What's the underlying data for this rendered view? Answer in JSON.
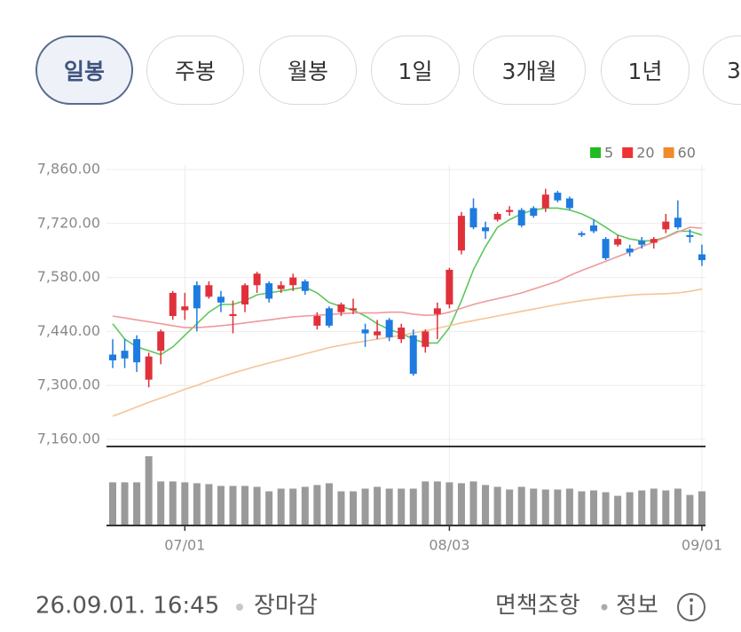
{
  "tabs": [
    "일봉",
    "주봉",
    "월봉",
    "1일",
    "3개월",
    "1년",
    "3"
  ],
  "selected_tab": 0,
  "chart_data": {
    "type": "candlestick",
    "categories": [
      null,
      null,
      null,
      null,
      null,
      null,
      "07/01",
      null,
      null,
      null,
      null,
      null,
      null,
      null,
      null,
      null,
      null,
      null,
      null,
      null,
      null,
      null,
      null,
      null,
      null,
      null,
      null,
      null,
      "08/03",
      null,
      null,
      null,
      null,
      null,
      null,
      null,
      null,
      null,
      null,
      null,
      null,
      null,
      null,
      null,
      null,
      null,
      null,
      null,
      null,
      "09/01"
    ],
    "open": [
      7380,
      7390,
      7420,
      7315,
      7390,
      7480,
      7495,
      7560,
      7530,
      7530,
      7480,
      7510,
      7560,
      7565,
      7550,
      7560,
      7570,
      7455,
      7500,
      7490,
      7495,
      7445,
      7430,
      7470,
      7420,
      7430,
      7400,
      7485,
      7510,
      7650,
      7760,
      7710,
      7730,
      7750,
      7755,
      7760,
      7760,
      7800,
      7785,
      7695,
      7715,
      7680,
      7665,
      7655,
      7675,
      7670,
      7705,
      7735,
      7690,
      7640
    ],
    "high": [
      7420,
      7420,
      7430,
      7385,
      7445,
      7545,
      7540,
      7570,
      7570,
      7545,
      7520,
      7565,
      7595,
      7570,
      7570,
      7590,
      7575,
      7490,
      7505,
      7515,
      7525,
      7460,
      7470,
      7475,
      7460,
      7445,
      7445,
      7515,
      7605,
      7750,
      7785,
      7725,
      7750,
      7765,
      7760,
      7765,
      7810,
      7805,
      7790,
      7700,
      7730,
      7685,
      7690,
      7665,
      7685,
      7685,
      7745,
      7780,
      7705,
      7665
    ],
    "low": [
      7345,
      7345,
      7335,
      7295,
      7355,
      7470,
      7470,
      7440,
      7525,
      7490,
      7435,
      7490,
      7540,
      7515,
      7540,
      7545,
      7535,
      7445,
      7450,
      7480,
      7485,
      7400,
      7420,
      7415,
      7410,
      7325,
      7385,
      7420,
      7500,
      7640,
      7705,
      7680,
      7725,
      7740,
      7710,
      7735,
      7750,
      7775,
      7755,
      7685,
      7695,
      7625,
      7660,
      7635,
      7655,
      7655,
      7695,
      7705,
      7670,
      7610
    ],
    "close": [
      7365,
      7370,
      7360,
      7375,
      7440,
      7540,
      7505,
      7500,
      7560,
      7515,
      7485,
      7560,
      7590,
      7525,
      7560,
      7580,
      7545,
      7480,
      7455,
      7510,
      7500,
      7435,
      7440,
      7425,
      7450,
      7330,
      7440,
      7500,
      7600,
      7740,
      7710,
      7700,
      7745,
      7755,
      7715,
      7740,
      7795,
      7780,
      7760,
      7690,
      7700,
      7630,
      7680,
      7645,
      7665,
      7680,
      7725,
      7710,
      7685,
      7625
    ],
    "up_color": "#e0313b",
    "down_color": "#1e7be0",
    "ylim": [
      7160,
      7860
    ],
    "yticks": [
      {
        "value": 7160,
        "label": "7,160.00"
      },
      {
        "value": 7300,
        "label": "7,300.00"
      },
      {
        "value": 7440,
        "label": "7,440.00"
      },
      {
        "value": 7580,
        "label": "7,580.00"
      },
      {
        "value": 7720,
        "label": "7,720.00"
      },
      {
        "value": 7860,
        "label": "7,860.00"
      }
    ],
    "grid": true,
    "series": [
      {
        "name": "5",
        "color": "#5cc85c",
        "values": [
          7460,
          7420,
          7400,
          7390,
          7380,
          7400,
          7430,
          7460,
          7490,
          7510,
          7510,
          7520,
          7535,
          7540,
          7545,
          7550,
          7555,
          7540,
          7515,
          7505,
          7495,
          7480,
          7460,
          7445,
          7435,
          7420,
          7410,
          7410,
          7450,
          7520,
          7600,
          7660,
          7710,
          7730,
          7745,
          7755,
          7760,
          7760,
          7755,
          7745,
          7730,
          7710,
          7690,
          7680,
          7675,
          7675,
          7685,
          7700,
          7700,
          7690
        ]
      },
      {
        "name": "20",
        "color": "#ee9a9a",
        "values": [
          7480,
          7475,
          7470,
          7465,
          7460,
          7455,
          7450,
          7450,
          7452,
          7455,
          7458,
          7462,
          7466,
          7470,
          7474,
          7478,
          7480,
          7482,
          7484,
          7486,
          7488,
          7488,
          7488,
          7490,
          7490,
          7485,
          7482,
          7483,
          7490,
          7500,
          7510,
          7518,
          7525,
          7532,
          7540,
          7550,
          7560,
          7570,
          7585,
          7598,
          7610,
          7622,
          7634,
          7646,
          7660,
          7672,
          7684,
          7698,
          7710,
          7708
        ]
      },
      {
        "name": "60",
        "color": "#f5c496",
        "values": [
          7220,
          7232,
          7244,
          7256,
          7267,
          7278,
          7290,
          7300,
          7312,
          7322,
          7332,
          7341,
          7350,
          7358,
          7366,
          7374,
          7382,
          7390,
          7398,
          7404,
          7410,
          7415,
          7420,
          7425,
          7430,
          7436,
          7442,
          7448,
          7455,
          7462,
          7468,
          7474,
          7480,
          7486,
          7492,
          7498,
          7504,
          7510,
          7515,
          7520,
          7524,
          7528,
          7531,
          7534,
          7536,
          7537,
          7538,
          7540,
          7544,
          7550
        ]
      }
    ],
    "legend_colors": [
      "#22bb22",
      "#ee3333",
      "#f08a2a"
    ],
    "volume": {
      "color": "#9a9a9a",
      "values": [
        47,
        47,
        47,
        76,
        48,
        48,
        47,
        46,
        45,
        43,
        43,
        43,
        42,
        37,
        40,
        40,
        42,
        44,
        46,
        37,
        37,
        40,
        42,
        40,
        40,
        40,
        48,
        48,
        47,
        46,
        48,
        44,
        42,
        39,
        42,
        40,
        39,
        39,
        40,
        37,
        38,
        36,
        32,
        36,
        38,
        40,
        38,
        40,
        33,
        37
      ]
    }
  },
  "footer": {
    "timestamp": "26.09.01. 16:45",
    "status": "장마감",
    "disclaimer": "면책조항",
    "info": "정보"
  }
}
